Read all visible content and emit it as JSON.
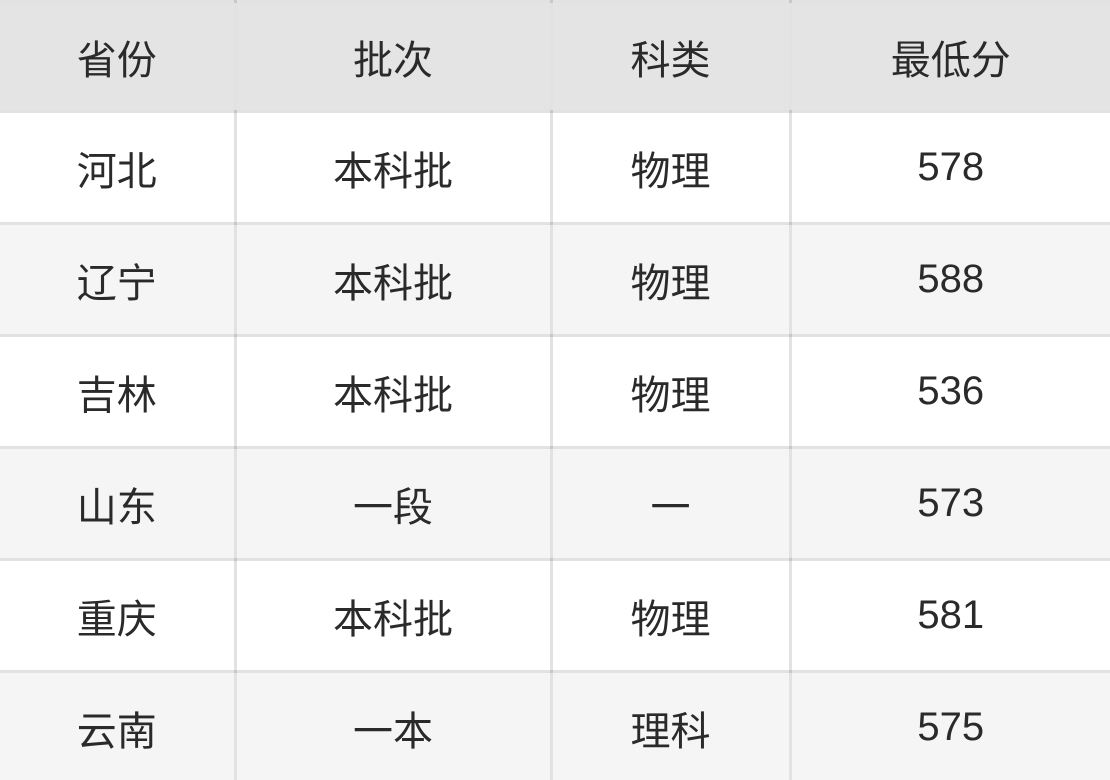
{
  "table": {
    "columns": [
      {
        "key": "province",
        "label": "省份"
      },
      {
        "key": "batch",
        "label": "批次"
      },
      {
        "key": "category",
        "label": "科类"
      },
      {
        "key": "min_score",
        "label": "最低分"
      }
    ],
    "rows": [
      {
        "province": "河北",
        "batch": "本科批",
        "category": "物理",
        "min_score": "578"
      },
      {
        "province": "辽宁",
        "batch": "本科批",
        "category": "物理",
        "min_score": "588"
      },
      {
        "province": "吉林",
        "batch": "本科批",
        "category": "物理",
        "min_score": "536"
      },
      {
        "province": "山东",
        "batch": "一段",
        "category": "一",
        "min_score": "573"
      },
      {
        "province": "重庆",
        "batch": "本科批",
        "category": "物理",
        "min_score": "581"
      },
      {
        "province": "云南",
        "batch": "一本",
        "category": "理科",
        "min_score": "575"
      }
    ],
    "colors": {
      "header_bg": "#e4e4e4",
      "row_bg": "#ffffff",
      "row_alt_bg": "#f5f5f5",
      "border": "rgba(0,0,0,0.115)",
      "text": "#2a2a2a"
    }
  },
  "chart_data": {
    "type": "table",
    "title": "",
    "columns": [
      "省份",
      "批次",
      "科类",
      "最低分"
    ],
    "rows": [
      [
        "河北",
        "本科批",
        "物理",
        578
      ],
      [
        "辽宁",
        "本科批",
        "物理",
        588
      ],
      [
        "吉林",
        "本科批",
        "物理",
        536
      ],
      [
        "山东",
        "一段",
        "一",
        573
      ],
      [
        "重庆",
        "本科批",
        "物理",
        581
      ],
      [
        "云南",
        "一本",
        "理科",
        575
      ]
    ]
  }
}
